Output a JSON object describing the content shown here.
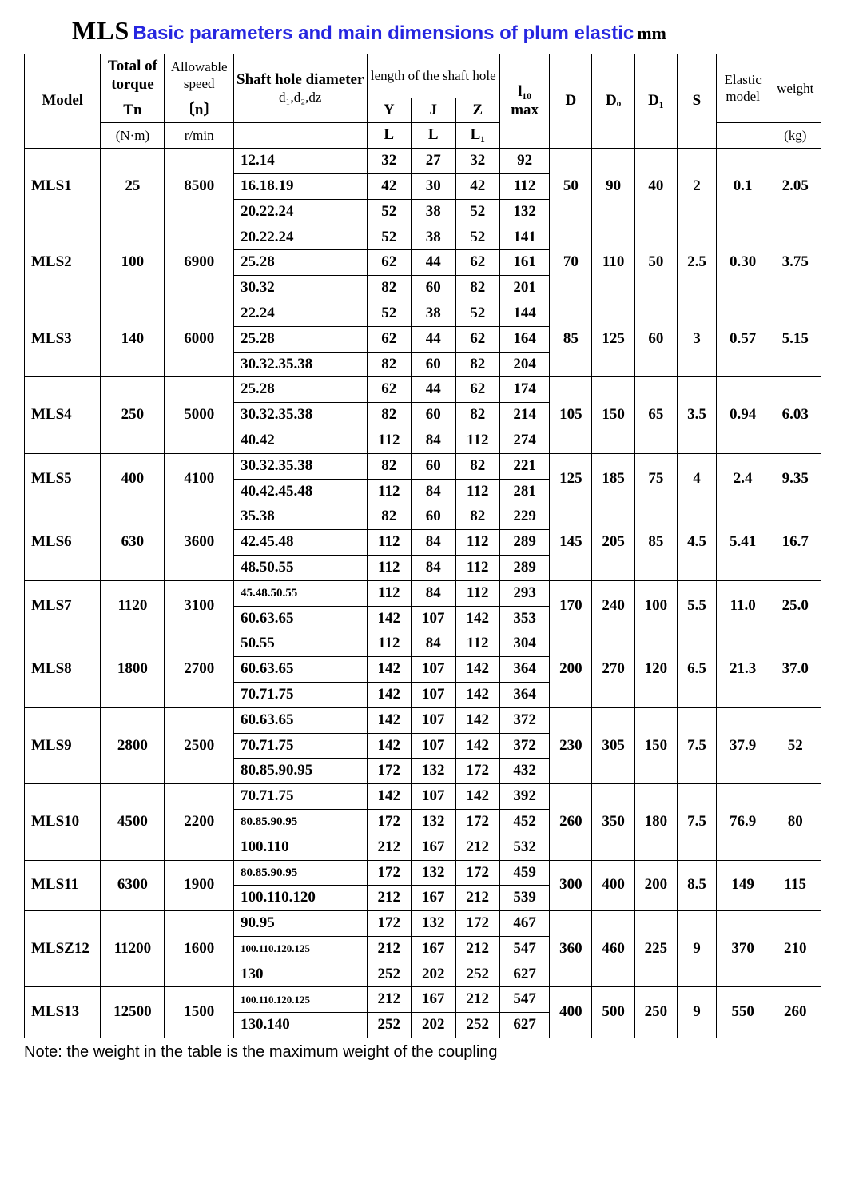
{
  "title": {
    "prefix": "MLS",
    "main": "Basic parameters and main dimensions of plum elastic",
    "unit": "mm"
  },
  "headers": {
    "model": "Model",
    "torque": "Total of torque",
    "torque_sym": "Tn",
    "torque_unit": "(N·m)",
    "speed": "Allowable speed",
    "speed_sym": "〔n〕",
    "speed_unit": "r/min",
    "shaft_dia": "Shaft hole diameter",
    "shaft_dia_sub": "d₁,d₂,dz",
    "shaft_len": "length of the shaft hole",
    "Y": "Y",
    "J": "J",
    "Z": "Z",
    "L": "L",
    "L1": "L₁",
    "l10": "l₁₀",
    "max": "max",
    "D": "D",
    "Do": "Dₒ",
    "D1": "D₁",
    "S": "S",
    "elastic": "Elastic model",
    "weight": "weight",
    "weight_unit": "(kg)"
  },
  "note": "Note: the weight in the table is the maximum weight of the coupling",
  "models": [
    {
      "model": "MLS1",
      "Tn": "25",
      "n": "8500",
      "D": "50",
      "Do": "90",
      "D1": "40",
      "S": "2",
      "elastic": "0.1",
      "weight": "2.05",
      "rows": [
        {
          "d": "12.14",
          "YL": "32",
          "JL": "27",
          "ZL1": "32",
          "l10": "92"
        },
        {
          "d": "16.18.19",
          "YL": "42",
          "JL": "30",
          "ZL1": "42",
          "l10": "112"
        },
        {
          "d": "20.22.24",
          "YL": "52",
          "JL": "38",
          "ZL1": "52",
          "l10": "132"
        }
      ]
    },
    {
      "model": "MLS2",
      "Tn": "100",
      "n": "6900",
      "D": "70",
      "Do": "110",
      "D1": "50",
      "S": "2.5",
      "elastic": "0.30",
      "weight": "3.75",
      "rows": [
        {
          "d": "20.22.24",
          "YL": "52",
          "JL": "38",
          "ZL1": "52",
          "l10": "141"
        },
        {
          "d": "25.28",
          "YL": "62",
          "JL": "44",
          "ZL1": "62",
          "l10": "161"
        },
        {
          "d": "30.32",
          "YL": "82",
          "JL": "60",
          "ZL1": "82",
          "l10": "201"
        }
      ]
    },
    {
      "model": "MLS3",
      "Tn": "140",
      "n": "6000",
      "D": "85",
      "Do": "125",
      "D1": "60",
      "S": "3",
      "elastic": "0.57",
      "weight": "5.15",
      "rows": [
        {
          "d": "22.24",
          "YL": "52",
          "JL": "38",
          "ZL1": "52",
          "l10": "144"
        },
        {
          "d": "25.28",
          "YL": "62",
          "JL": "44",
          "ZL1": "62",
          "l10": "164"
        },
        {
          "d": "30.32.35.38",
          "YL": "82",
          "JL": "60",
          "ZL1": "82",
          "l10": "204"
        }
      ]
    },
    {
      "model": "MLS4",
      "Tn": "250",
      "n": "5000",
      "D": "105",
      "Do": "150",
      "D1": "65",
      "S": "3.5",
      "elastic": "0.94",
      "weight": "6.03",
      "rows": [
        {
          "d": "25.28",
          "YL": "62",
          "JL": "44",
          "ZL1": "62",
          "l10": "174"
        },
        {
          "d": "30.32.35.38",
          "YL": "82",
          "JL": "60",
          "ZL1": "82",
          "l10": "214"
        },
        {
          "d": "40.42",
          "YL": "112",
          "JL": "84",
          "ZL1": "112",
          "l10": "274"
        }
      ]
    },
    {
      "model": "MLS5",
      "Tn": "400",
      "n": "4100",
      "D": "125",
      "Do": "185",
      "D1": "75",
      "S": "4",
      "elastic": "2.4",
      "weight": "9.35",
      "rows": [
        {
          "d": "30.32.35.38",
          "YL": "82",
          "JL": "60",
          "ZL1": "82",
          "l10": "221"
        },
        {
          "d": "40.42.45.48",
          "YL": "112",
          "JL": "84",
          "ZL1": "112",
          "l10": "281"
        }
      ]
    },
    {
      "model": "MLS6",
      "Tn": "630",
      "n": "3600",
      "D": "145",
      "Do": "205",
      "D1": "85",
      "S": "4.5",
      "elastic": "5.41",
      "weight": "16.7",
      "rows": [
        {
          "d": "35.38",
          "YL": "82",
          "JL": "60",
          "ZL1": "82",
          "l10": "229"
        },
        {
          "d": "42.45.48",
          "YL": "112",
          "JL": "84",
          "ZL1": "112",
          "l10": "289"
        },
        {
          "d": "48.50.55",
          "YL": "112",
          "JL": "84",
          "ZL1": "112",
          "l10": "289"
        }
      ]
    },
    {
      "model": "MLS7",
      "Tn": "1120",
      "n": "3100",
      "D": "170",
      "Do": "240",
      "D1": "100",
      "S": "5.5",
      "elastic": "11.0",
      "weight": "25.0",
      "rows": [
        {
          "d": "45.48.50.55",
          "YL": "112",
          "JL": "84",
          "ZL1": "112",
          "l10": "293",
          "dsmall": true
        },
        {
          "d": "60.63.65",
          "YL": "142",
          "JL": "107",
          "ZL1": "142",
          "l10": "353"
        }
      ]
    },
    {
      "model": "MLS8",
      "Tn": "1800",
      "n": "2700",
      "D": "200",
      "Do": "270",
      "D1": "120",
      "S": "6.5",
      "elastic": "21.3",
      "weight": "37.0",
      "rows": [
        {
          "d": "50.55",
          "YL": "112",
          "JL": "84",
          "ZL1": "112",
          "l10": "304"
        },
        {
          "d": "60.63.65",
          "YL": "142",
          "JL": "107",
          "ZL1": "142",
          "l10": "364"
        },
        {
          "d": "70.71.75",
          "YL": "142",
          "JL": "107",
          "ZL1": "142",
          "l10": "364"
        }
      ]
    },
    {
      "model": "MLS9",
      "Tn": "2800",
      "n": "2500",
      "D": "230",
      "Do": "305",
      "D1": "150",
      "S": "7.5",
      "elastic": "37.9",
      "weight": "52",
      "rows": [
        {
          "d": "60.63.65",
          "YL": "142",
          "JL": "107",
          "ZL1": "142",
          "l10": "372"
        },
        {
          "d": "70.71.75",
          "YL": "142",
          "JL": "107",
          "ZL1": "142",
          "l10": "372"
        },
        {
          "d": "80.85.90.95",
          "YL": "172",
          "JL": "132",
          "ZL1": "172",
          "l10": "432"
        }
      ]
    },
    {
      "model": "MLS10",
      "Tn": "4500",
      "n": "2200",
      "D": "260",
      "Do": "350",
      "D1": "180",
      "S": "7.5",
      "elastic": "76.9",
      "weight": "80",
      "rows": [
        {
          "d": "70.71.75",
          "YL": "142",
          "JL": "107",
          "ZL1": "142",
          "l10": "392"
        },
        {
          "d": "80.85.90.95",
          "YL": "172",
          "JL": "132",
          "ZL1": "172",
          "l10": "452",
          "dsmall": true
        },
        {
          "d": "100.110",
          "YL": "212",
          "JL": "167",
          "ZL1": "212",
          "l10": "532"
        }
      ]
    },
    {
      "model": "MLS11",
      "Tn": "6300",
      "n": "1900",
      "D": "300",
      "Do": "400",
      "D1": "200",
      "S": "8.5",
      "elastic": "149",
      "weight": "115",
      "rows": [
        {
          "d": "80.85.90.95",
          "YL": "172",
          "JL": "132",
          "ZL1": "172",
          "l10": "459",
          "dsmall": true
        },
        {
          "d": "100.110.120",
          "YL": "212",
          "JL": "167",
          "ZL1": "212",
          "l10": "539"
        }
      ]
    },
    {
      "model": "MLSZ12",
      "Tn": "11200",
      "n": "1600",
      "D": "360",
      "Do": "460",
      "D1": "225",
      "S": "9",
      "elastic": "370",
      "weight": "210",
      "rows": [
        {
          "d": "90.95",
          "YL": "172",
          "JL": "132",
          "ZL1": "172",
          "l10": "467"
        },
        {
          "d": "100.110.120.125",
          "YL": "212",
          "JL": "167",
          "ZL1": "212",
          "l10": "547",
          "dtiny": true
        },
        {
          "d": "130",
          "YL": "252",
          "JL": "202",
          "ZL1": "252",
          "l10": "627"
        }
      ]
    },
    {
      "model": "MLS13",
      "Tn": "12500",
      "n": "1500",
      "D": "400",
      "Do": "500",
      "D1": "250",
      "S": "9",
      "elastic": "550",
      "weight": "260",
      "rows": [
        {
          "d": "100.110.120.125",
          "YL": "212",
          "JL": "167",
          "ZL1": "212",
          "l10": "547",
          "dtiny": true
        },
        {
          "d": "130.140",
          "YL": "252",
          "JL": "202",
          "ZL1": "252",
          "l10": "627"
        }
      ]
    }
  ]
}
